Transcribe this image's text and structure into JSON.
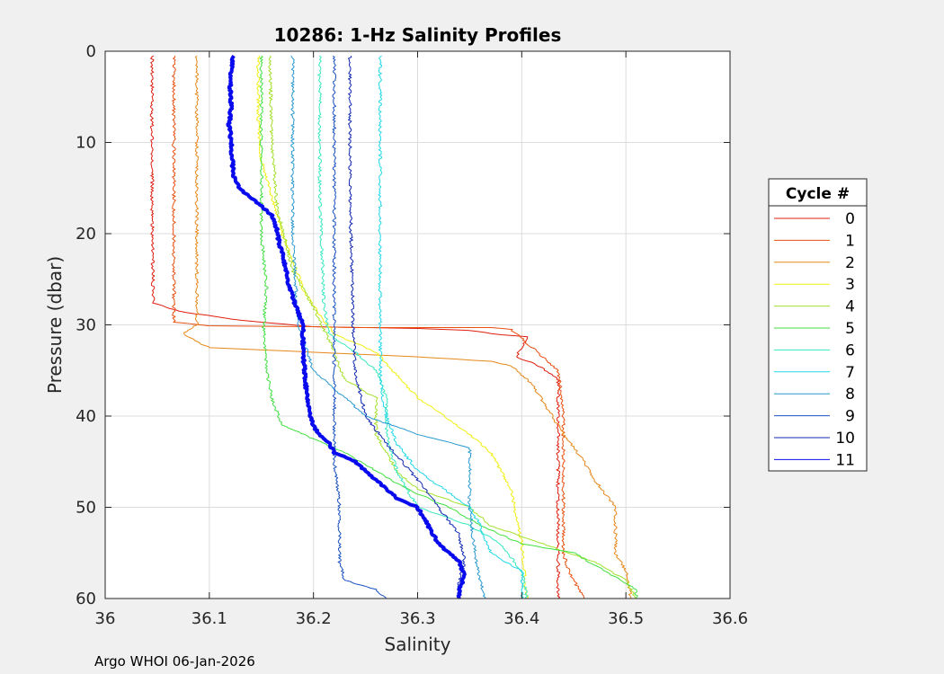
{
  "chart_data": {
    "type": "line",
    "title": "10286: 1-Hz Salinity Profiles",
    "xlabel": "Salinity",
    "ylabel": "Pressure (dbar)",
    "xlim": [
      36,
      36.6
    ],
    "ylim": [
      0,
      60
    ],
    "y_reversed": true,
    "grid": true,
    "x_ticks": [
      36,
      36.1,
      36.2,
      36.3,
      36.4,
      36.5,
      36.6
    ],
    "x_tick_labels": [
      "36",
      "36.1",
      "36.2",
      "36.3",
      "36.4",
      "36.5",
      "36.6"
    ],
    "y_ticks": [
      0,
      10,
      20,
      30,
      40,
      50,
      60
    ],
    "y_tick_labels": [
      "0",
      "10",
      "20",
      "30",
      "40",
      "50",
      "60"
    ],
    "legend": {
      "title": "Cycle #",
      "position": "outside-right"
    },
    "footer": "Argo WHOI 06-Jan-2026",
    "series": [
      {
        "name": "0",
        "color": "#e01d10",
        "width": 1,
        "points": [
          [
            36.045,
            0.5
          ],
          [
            36.045,
            15
          ],
          [
            36.046,
            27.6
          ],
          [
            36.07,
            28.5
          ],
          [
            36.13,
            29.5
          ],
          [
            36.2,
            30.2
          ],
          [
            36.3,
            30.4
          ],
          [
            36.35,
            30.6
          ],
          [
            36.38,
            31.1
          ],
          [
            36.405,
            31.3
          ],
          [
            36.395,
            33.5
          ],
          [
            36.415,
            34.4
          ],
          [
            36.435,
            36
          ],
          [
            36.435,
            60
          ]
        ]
      },
      {
        "name": "1",
        "color": "#e85010",
        "width": 1,
        "points": [
          [
            36.066,
            0.5
          ],
          [
            36.066,
            15
          ],
          [
            36.066,
            29.7
          ],
          [
            36.1,
            30.1
          ],
          [
            36.2,
            30.2
          ],
          [
            36.24,
            30.3
          ],
          [
            36.37,
            30.3
          ],
          [
            36.39,
            30.5
          ],
          [
            36.42,
            33.5
          ],
          [
            36.435,
            35
          ],
          [
            36.44,
            40
          ],
          [
            36.44,
            55
          ],
          [
            36.445,
            57
          ],
          [
            36.46,
            60
          ]
        ]
      },
      {
        "name": "2",
        "color": "#e8881a",
        "width": 1,
        "points": [
          [
            36.088,
            0.5
          ],
          [
            36.088,
            15
          ],
          [
            36.088,
            30
          ],
          [
            36.075,
            31
          ],
          [
            36.09,
            32
          ],
          [
            36.1,
            32.5
          ],
          [
            36.2,
            33
          ],
          [
            36.3,
            33.5
          ],
          [
            36.37,
            34
          ],
          [
            36.39,
            34.5
          ],
          [
            36.41,
            36.5
          ],
          [
            36.44,
            42
          ],
          [
            36.46,
            45
          ],
          [
            36.47,
            47
          ],
          [
            36.49,
            50
          ],
          [
            36.49,
            55
          ],
          [
            36.5,
            57
          ],
          [
            36.505,
            60
          ]
        ]
      },
      {
        "name": "3",
        "color": "#f0f010",
        "width": 1,
        "points": [
          [
            36.147,
            0.5
          ],
          [
            36.147,
            8
          ],
          [
            36.15,
            12
          ],
          [
            36.17,
            20
          ],
          [
            36.19,
            26
          ],
          [
            36.2,
            28
          ],
          [
            36.22,
            31
          ],
          [
            36.26,
            33
          ],
          [
            36.28,
            35.5
          ],
          [
            36.3,
            38
          ],
          [
            36.35,
            42
          ],
          [
            36.37,
            44
          ],
          [
            36.38,
            46
          ],
          [
            36.39,
            48
          ],
          [
            36.4,
            54
          ],
          [
            36.405,
            60
          ]
        ]
      },
      {
        "name": "4",
        "color": "#a4e02c",
        "width": 1,
        "points": [
          [
            36.158,
            0.5
          ],
          [
            36.16,
            10
          ],
          [
            36.165,
            17
          ],
          [
            36.18,
            24
          ],
          [
            36.2,
            28
          ],
          [
            36.22,
            33
          ],
          [
            36.23,
            36
          ],
          [
            36.26,
            38
          ],
          [
            36.26,
            42
          ],
          [
            36.28,
            46
          ],
          [
            36.3,
            48
          ],
          [
            36.35,
            50
          ],
          [
            36.37,
            52
          ],
          [
            36.42,
            54
          ],
          [
            36.47,
            56
          ],
          [
            36.5,
            58
          ],
          [
            36.51,
            60
          ]
        ]
      },
      {
        "name": "5",
        "color": "#40e040",
        "width": 1,
        "points": [
          [
            36.15,
            0.5
          ],
          [
            36.15,
            20
          ],
          [
            36.155,
            26
          ],
          [
            36.152,
            30
          ],
          [
            36.155,
            35
          ],
          [
            36.16,
            38
          ],
          [
            36.17,
            41
          ],
          [
            36.2,
            42.5
          ],
          [
            36.23,
            44
          ],
          [
            36.26,
            46
          ],
          [
            36.29,
            48
          ],
          [
            36.33,
            50
          ],
          [
            36.36,
            52
          ],
          [
            36.4,
            54
          ],
          [
            36.45,
            55
          ],
          [
            36.48,
            57
          ],
          [
            36.51,
            59
          ],
          [
            36.51,
            60
          ]
        ]
      },
      {
        "name": "6",
        "color": "#38e8c0",
        "width": 1,
        "points": [
          [
            36.206,
            0.5
          ],
          [
            36.206,
            15
          ],
          [
            36.21,
            28
          ],
          [
            36.215,
            31
          ],
          [
            36.24,
            33
          ],
          [
            36.26,
            35
          ],
          [
            36.27,
            38
          ],
          [
            36.27,
            42
          ],
          [
            36.28,
            46
          ],
          [
            36.3,
            50
          ],
          [
            36.35,
            52
          ],
          [
            36.38,
            54
          ],
          [
            36.4,
            57
          ],
          [
            36.405,
            60
          ]
        ]
      },
      {
        "name": "7",
        "color": "#20d8e8",
        "width": 1,
        "points": [
          [
            36.264,
            0.5
          ],
          [
            36.264,
            15
          ],
          [
            36.264,
            30
          ],
          [
            36.264,
            32
          ],
          [
            36.265,
            37
          ],
          [
            36.27,
            40
          ],
          [
            36.28,
            43
          ],
          [
            36.3,
            46
          ],
          [
            36.35,
            50
          ],
          [
            36.36,
            52
          ],
          [
            36.37,
            55
          ],
          [
            36.4,
            57
          ],
          [
            36.4,
            60
          ]
        ]
      },
      {
        "name": "8",
        "color": "#2898d0",
        "width": 1,
        "points": [
          [
            36.18,
            0.5
          ],
          [
            36.18,
            20
          ],
          [
            36.185,
            30
          ],
          [
            36.2,
            35
          ],
          [
            36.25,
            40
          ],
          [
            36.3,
            42
          ],
          [
            36.35,
            43.5
          ],
          [
            36.35,
            50
          ],
          [
            36.355,
            55
          ],
          [
            36.36,
            58
          ],
          [
            36.365,
            60
          ]
        ]
      },
      {
        "name": "9",
        "color": "#1850c0",
        "width": 1,
        "points": [
          [
            36.22,
            0.5
          ],
          [
            36.22,
            15
          ],
          [
            36.22,
            30
          ],
          [
            36.22,
            40
          ],
          [
            36.22,
            45
          ],
          [
            36.225,
            50
          ],
          [
            36.225,
            56
          ],
          [
            36.23,
            58
          ],
          [
            36.26,
            59
          ],
          [
            36.27,
            60
          ]
        ]
      },
      {
        "name": "10",
        "color": "#1028b0",
        "width": 1,
        "points": [
          [
            36.235,
            0.5
          ],
          [
            36.235,
            15
          ],
          [
            36.238,
            30
          ],
          [
            36.24,
            35
          ],
          [
            36.25,
            40
          ],
          [
            36.27,
            43
          ],
          [
            36.3,
            47
          ],
          [
            36.32,
            50
          ],
          [
            36.34,
            53
          ],
          [
            36.345,
            56
          ],
          [
            36.34,
            58
          ],
          [
            36.34,
            60
          ]
        ]
      },
      {
        "name": "11",
        "color": "#0a0aee",
        "width": 4,
        "points": [
          [
            36.123,
            0.5
          ],
          [
            36.121,
            2
          ],
          [
            36.12,
            4
          ],
          [
            36.121,
            6
          ],
          [
            36.119,
            8
          ],
          [
            36.121,
            10
          ],
          [
            36.122,
            12
          ],
          [
            36.124,
            14
          ],
          [
            36.13,
            15.2
          ],
          [
            36.14,
            16
          ],
          [
            36.15,
            17
          ],
          [
            36.16,
            18
          ],
          [
            36.165,
            19.5
          ],
          [
            36.167,
            21
          ],
          [
            36.172,
            23
          ],
          [
            36.175,
            25
          ],
          [
            36.18,
            27
          ],
          [
            36.185,
            28.5
          ],
          [
            36.19,
            30
          ],
          [
            36.19,
            33
          ],
          [
            36.192,
            36
          ],
          [
            36.195,
            39
          ],
          [
            36.2,
            41
          ],
          [
            36.205,
            42
          ],
          [
            36.215,
            43
          ],
          [
            36.22,
            44
          ],
          [
            36.24,
            45
          ],
          [
            36.25,
            46
          ],
          [
            36.26,
            47
          ],
          [
            36.27,
            48
          ],
          [
            36.28,
            49
          ],
          [
            36.3,
            50
          ],
          [
            36.31,
            52
          ],
          [
            36.32,
            54
          ],
          [
            36.33,
            55
          ],
          [
            36.34,
            56
          ],
          [
            36.345,
            57.5
          ],
          [
            36.34,
            59
          ],
          [
            36.34,
            60
          ]
        ]
      }
    ]
  }
}
